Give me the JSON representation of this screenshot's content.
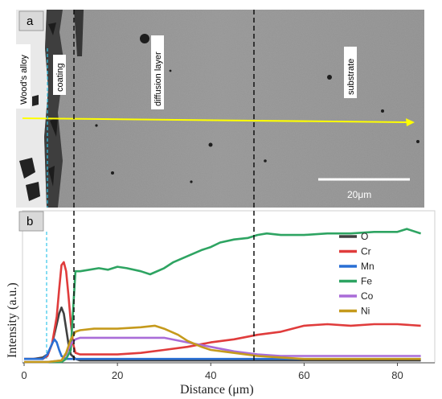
{
  "figure": {
    "panel_a": {
      "tag": "a",
      "labels": [
        "Wood's alloy",
        "coating",
        "diffusion layer",
        "substrate"
      ],
      "scale_bar": "20μm"
    },
    "panel_b": {
      "tag": "b"
    }
  },
  "chart_data": {
    "type": "line",
    "xlabel": "Distance (μm)",
    "ylabel": "Intensity (a.u.)",
    "xlim": [
      0,
      88
    ],
    "ylim": [
      0,
      1
    ],
    "x_ticks": [
      0,
      20,
      40,
      60,
      80
    ],
    "grid": false,
    "legend_position": "top-right",
    "series": [
      {
        "name": "O",
        "color": "#404040",
        "x": [
          0,
          2,
          4,
          5,
          6,
          7,
          7.5,
          8,
          8.5,
          9,
          9.5,
          10,
          11,
          12,
          20,
          30,
          40,
          50,
          60,
          70,
          80,
          85
        ],
        "y": [
          0.02,
          0.02,
          0.03,
          0.05,
          0.12,
          0.25,
          0.32,
          0.36,
          0.32,
          0.22,
          0.12,
          0.05,
          0.02,
          0.01,
          0.01,
          0.01,
          0.01,
          0.01,
          0.01,
          0.01,
          0.01,
          0.01
        ]
      },
      {
        "name": "Cr",
        "color": "#e03c3c",
        "x": [
          0,
          2,
          4,
          5,
          6,
          7,
          7.5,
          8,
          8.5,
          9,
          9.5,
          10,
          10.5,
          11,
          12,
          15,
          20,
          25,
          30,
          35,
          40,
          45,
          50,
          55,
          60,
          65,
          70,
          75,
          80,
          85
        ],
        "y": [
          0.02,
          0.02,
          0.02,
          0.04,
          0.12,
          0.3,
          0.48,
          0.64,
          0.66,
          0.6,
          0.44,
          0.26,
          0.12,
          0.06,
          0.05,
          0.05,
          0.05,
          0.06,
          0.08,
          0.1,
          0.13,
          0.15,
          0.18,
          0.2,
          0.24,
          0.25,
          0.24,
          0.25,
          0.25,
          0.24
        ]
      },
      {
        "name": "Mn",
        "color": "#2a6fd4",
        "x": [
          0,
          2,
          4,
          5,
          6,
          6.5,
          7,
          7.5,
          8,
          9,
          10,
          11,
          15,
          20,
          30,
          40,
          50,
          60,
          70,
          80,
          85
        ],
        "y": [
          0.02,
          0.02,
          0.02,
          0.05,
          0.12,
          0.15,
          0.13,
          0.08,
          0.04,
          0.02,
          0.02,
          0.02,
          0.02,
          0.02,
          0.02,
          0.02,
          0.02,
          0.02,
          0.02,
          0.02,
          0.02
        ]
      },
      {
        "name": "Fe",
        "color": "#2ea462",
        "x": [
          0,
          5,
          8,
          9,
          10,
          10.5,
          11,
          12,
          14,
          16,
          18,
          20,
          22,
          25,
          27,
          30,
          32,
          35,
          38,
          40,
          42,
          45,
          48,
          50,
          52,
          55,
          60,
          65,
          70,
          75,
          80,
          82,
          85
        ],
        "y": [
          0.0,
          0.0,
          0.0,
          0.02,
          0.08,
          0.35,
          0.6,
          0.6,
          0.61,
          0.62,
          0.61,
          0.63,
          0.62,
          0.6,
          0.58,
          0.62,
          0.66,
          0.7,
          0.74,
          0.76,
          0.79,
          0.81,
          0.82,
          0.84,
          0.85,
          0.84,
          0.84,
          0.85,
          0.85,
          0.86,
          0.86,
          0.88,
          0.85
        ]
      },
      {
        "name": "Co",
        "color": "#a96cd8",
        "x": [
          0,
          5,
          8,
          9,
          10,
          11,
          12,
          15,
          20,
          25,
          30,
          35,
          40,
          45,
          50,
          55,
          60,
          70,
          80,
          85
        ],
        "y": [
          0.0,
          0.0,
          0.01,
          0.05,
          0.12,
          0.15,
          0.16,
          0.16,
          0.16,
          0.16,
          0.16,
          0.13,
          0.1,
          0.07,
          0.05,
          0.04,
          0.04,
          0.04,
          0.04,
          0.04
        ]
      },
      {
        "name": "Ni",
        "color": "#c59a1c",
        "x": [
          0,
          5,
          8,
          9,
          10,
          11,
          12,
          15,
          20,
          25,
          28,
          30,
          33,
          35,
          38,
          40,
          45,
          50,
          55,
          60,
          70,
          80,
          85
        ],
        "y": [
          0.0,
          0.0,
          0.01,
          0.06,
          0.15,
          0.2,
          0.21,
          0.22,
          0.22,
          0.23,
          0.24,
          0.22,
          0.18,
          0.14,
          0.1,
          0.08,
          0.06,
          0.04,
          0.03,
          0.02,
          0.02,
          0.02,
          0.02
        ]
      }
    ]
  }
}
